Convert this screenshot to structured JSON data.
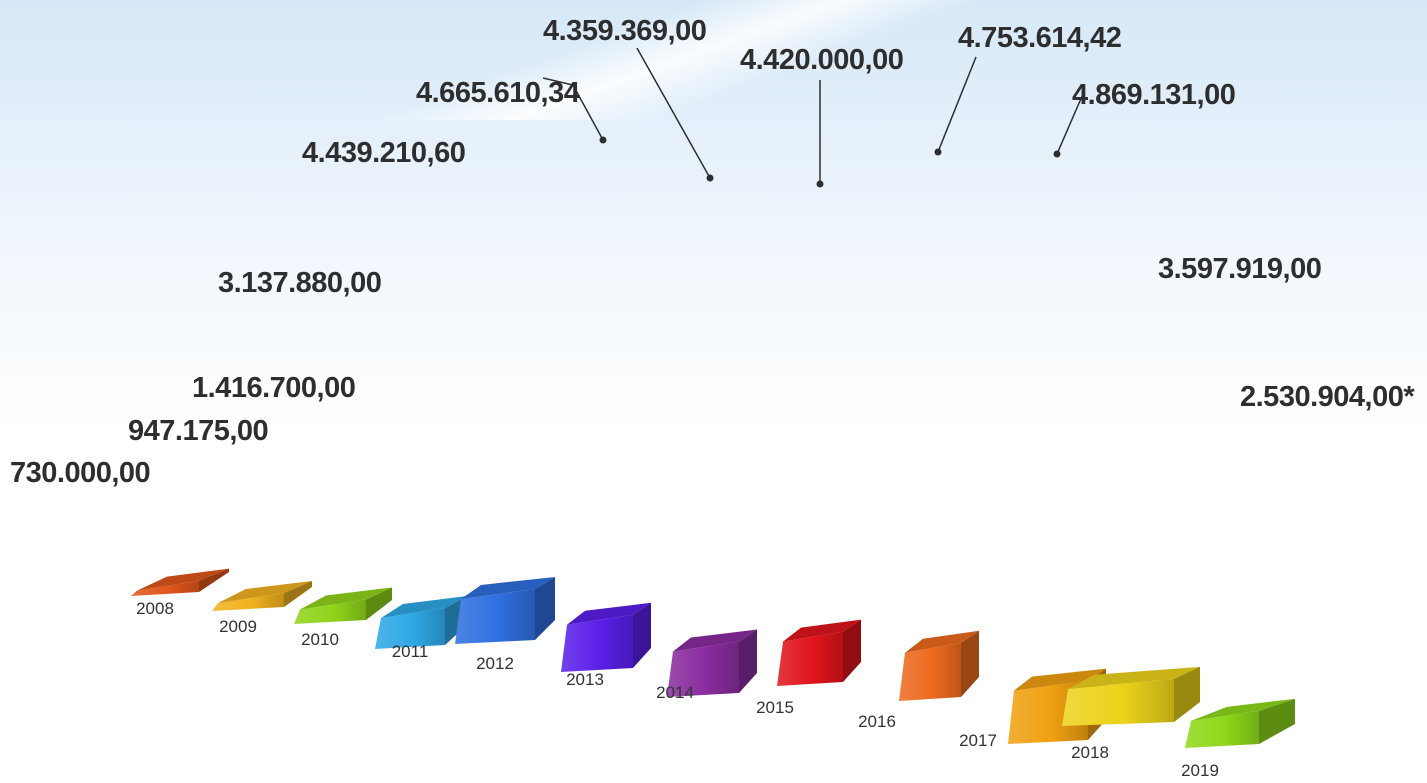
{
  "chart_data": {
    "type": "bar",
    "categories": [
      "2008",
      "2009",
      "2010",
      "2011",
      "2012",
      "2013",
      "2014",
      "2015",
      "2016",
      "2017",
      "2018",
      "2019"
    ],
    "values": [
      730000.0,
      947175.0,
      1416700.0,
      3137880.0,
      4439210.6,
      4665610.34,
      4359369.0,
      4420000.0,
      4753614.42,
      4869131.0,
      3597919.0,
      2530904.0
    ],
    "data_labels": [
      "730.000,00",
      "947.175,00",
      "1.416.700,00",
      "3.137.880,00",
      "4.439.210,60",
      "4.665.610,34",
      "4.359.369,00",
      "4.420.000,00",
      "4.753.614,42",
      "4.869.131,00",
      "3.597.919,00",
      "2.530.904,00*"
    ],
    "colors": [
      "#e0561c",
      "#f0b21e",
      "#8fd41a",
      "#2ea8e6",
      "#2f6fe0",
      "#5a1fe8",
      "#8a2c9e",
      "#e0141c",
      "#ec6a1e",
      "#f0a010",
      "#ecd21a",
      "#8ed81a"
    ],
    "title": "",
    "xlabel": "",
    "ylabel": "",
    "grid": false,
    "legend": "none",
    "style": "3d-perspective"
  }
}
